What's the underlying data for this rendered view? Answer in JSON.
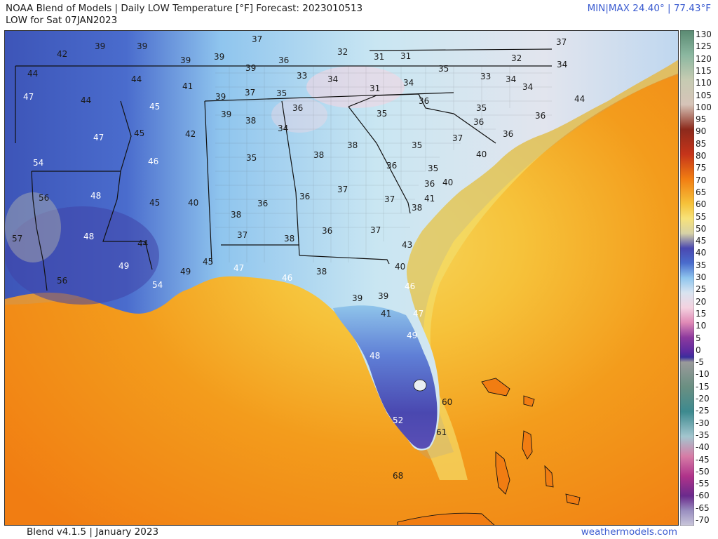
{
  "header": {
    "title": "NOAA Blend of Models | Daily LOW Temperature [°F] Forecast: 2023010513",
    "subtitle": "LOW for Sat 07JAN2023",
    "minmax": "MIN|MAX 24.40°  |  77.43°F"
  },
  "footer": {
    "version": "Blend v4.1.5 | January 2023",
    "site": "weathermodels.com"
  },
  "legend": {
    "ticks": [
      "130",
      "125",
      "120",
      "115",
      "110",
      "105",
      "100",
      "95",
      "90",
      "85",
      "80",
      "75",
      "70",
      "65",
      "60",
      "55",
      "50",
      "45",
      "40",
      "35",
      "30",
      "25",
      "20",
      "15",
      "10",
      "5",
      "0",
      "-5",
      "-10",
      "-15",
      "-20",
      "-25",
      "-30",
      "-35",
      "-40",
      "-45",
      "-50",
      "-55",
      "-60",
      "-65",
      "-70"
    ]
  },
  "map": {
    "values": [
      {
        "v": "37",
        "c": "dark"
      },
      {
        "v": "37",
        "c": "dark"
      },
      {
        "v": "42",
        "c": "dark"
      },
      {
        "v": "39",
        "c": "dark"
      },
      {
        "v": "39",
        "c": "dark"
      },
      {
        "v": "39",
        "c": "dark"
      },
      {
        "v": "39",
        "c": "dark"
      },
      {
        "v": "32",
        "c": "dark"
      },
      {
        "v": "31",
        "c": "dark"
      },
      {
        "v": "31",
        "c": "dark"
      },
      {
        "v": "32",
        "c": "dark"
      },
      {
        "v": "34",
        "c": "dark"
      },
      {
        "v": "44",
        "c": "dark"
      },
      {
        "v": "44",
        "c": "dark"
      },
      {
        "v": "39",
        "c": "dark"
      },
      {
        "v": "36",
        "c": "dark"
      },
      {
        "v": "33",
        "c": "dark"
      },
      {
        "v": "34",
        "c": "dark"
      },
      {
        "v": "34",
        "c": "dark"
      },
      {
        "v": "35",
        "c": "dark"
      },
      {
        "v": "33",
        "c": "dark"
      },
      {
        "v": "34",
        "c": "dark"
      },
      {
        "v": "47",
        "c": "light"
      },
      {
        "v": "44",
        "c": "dark"
      },
      {
        "v": "41",
        "c": "dark"
      },
      {
        "v": "39",
        "c": "dark"
      },
      {
        "v": "37",
        "c": "dark"
      },
      {
        "v": "35",
        "c": "dark"
      },
      {
        "v": "31",
        "c": "dark"
      },
      {
        "v": "34",
        "c": "dark"
      },
      {
        "v": "35",
        "c": "dark"
      },
      {
        "v": "44",
        "c": "dark"
      },
      {
        "v": "45",
        "c": "light"
      },
      {
        "v": "36",
        "c": "dark"
      },
      {
        "v": "36",
        "c": "dark"
      },
      {
        "v": "35",
        "c": "dark"
      },
      {
        "v": "36",
        "c": "dark"
      },
      {
        "v": "36",
        "c": "dark"
      },
      {
        "v": "39",
        "c": "dark"
      },
      {
        "v": "38",
        "c": "dark"
      },
      {
        "v": "45",
        "c": "dark"
      },
      {
        "v": "42",
        "c": "dark"
      },
      {
        "v": "47",
        "c": "light"
      },
      {
        "v": "34",
        "c": "dark"
      },
      {
        "v": "35",
        "c": "dark"
      },
      {
        "v": "37",
        "c": "dark"
      },
      {
        "v": "36",
        "c": "dark"
      },
      {
        "v": "35",
        "c": "dark"
      },
      {
        "v": "40",
        "c": "dark"
      },
      {
        "v": "54",
        "c": "light"
      },
      {
        "v": "46",
        "c": "light"
      },
      {
        "v": "38",
        "c": "dark"
      },
      {
        "v": "38",
        "c": "dark"
      },
      {
        "v": "36",
        "c": "dark"
      },
      {
        "v": "35",
        "c": "dark"
      },
      {
        "v": "36",
        "c": "dark"
      },
      {
        "v": "40",
        "c": "dark"
      },
      {
        "v": "56",
        "c": "dark"
      },
      {
        "v": "48",
        "c": "light"
      },
      {
        "v": "45",
        "c": "dark"
      },
      {
        "v": "40",
        "c": "dark"
      },
      {
        "v": "36",
        "c": "dark"
      },
      {
        "v": "37",
        "c": "dark"
      },
      {
        "v": "37",
        "c": "dark"
      },
      {
        "v": "36",
        "c": "dark"
      },
      {
        "v": "38",
        "c": "dark"
      },
      {
        "v": "41",
        "c": "dark"
      },
      {
        "v": "38",
        "c": "dark"
      },
      {
        "v": "57",
        "c": "dark"
      },
      {
        "v": "48",
        "c": "light"
      },
      {
        "v": "44",
        "c": "dark"
      },
      {
        "v": "37",
        "c": "dark"
      },
      {
        "v": "38",
        "c": "dark"
      },
      {
        "v": "36",
        "c": "dark"
      },
      {
        "v": "37",
        "c": "dark"
      },
      {
        "v": "43",
        "c": "dark"
      },
      {
        "v": "49",
        "c": "light"
      },
      {
        "v": "45",
        "c": "dark"
      },
      {
        "v": "47",
        "c": "light"
      },
      {
        "v": "38",
        "c": "dark"
      },
      {
        "v": "40",
        "c": "dark"
      },
      {
        "v": "49",
        "c": "dark"
      },
      {
        "v": "56",
        "c": "dark"
      },
      {
        "v": "46",
        "c": "light"
      },
      {
        "v": "54",
        "c": "light"
      },
      {
        "v": "39",
        "c": "dark"
      },
      {
        "v": "39",
        "c": "dark"
      },
      {
        "v": "46",
        "c": "light"
      },
      {
        "v": "41",
        "c": "dark"
      },
      {
        "v": "47",
        "c": "light"
      },
      {
        "v": "49",
        "c": "light"
      },
      {
        "v": "48",
        "c": "light"
      },
      {
        "v": "60",
        "c": "dark"
      },
      {
        "v": "52",
        "c": "light"
      },
      {
        "v": "61",
        "c": "dark"
      },
      {
        "v": "68",
        "c": "dark"
      }
    ]
  }
}
